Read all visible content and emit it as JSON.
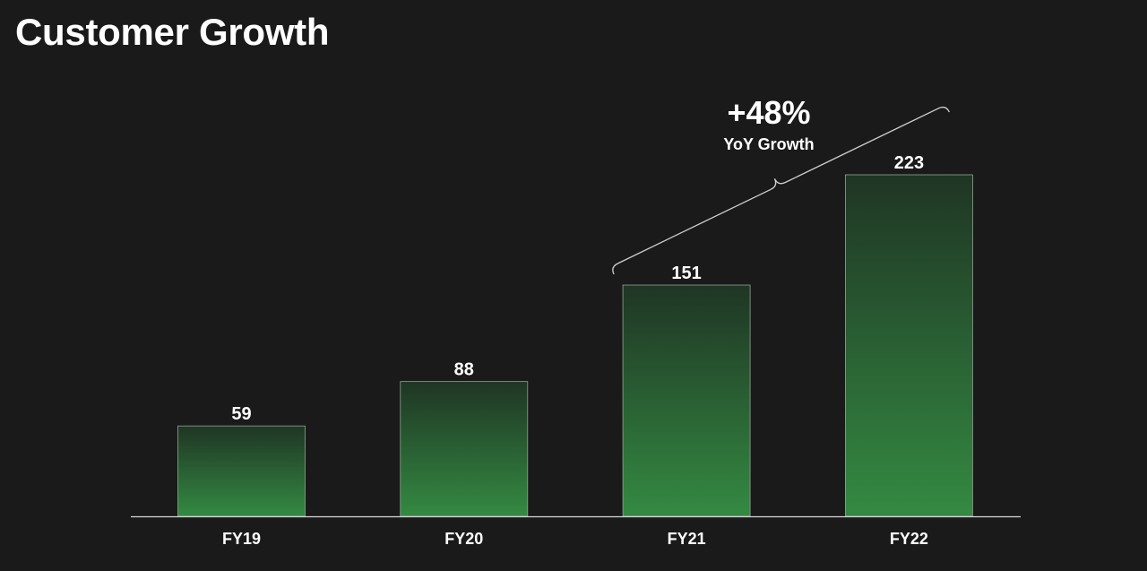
{
  "title": "Customer Growth",
  "chart_data": {
    "type": "bar",
    "categories": [
      "FY19",
      "FY20",
      "FY21",
      "FY22"
    ],
    "values": [
      59,
      88,
      151,
      223
    ],
    "ylim": [
      0,
      223
    ],
    "grid": false,
    "xlabel": "",
    "ylabel": "",
    "annotation": {
      "value": "+48%",
      "caption": "YoY Growth",
      "from": "FY21",
      "to": "FY22"
    },
    "colors": {
      "background": "#1a1a1a",
      "bar_top": "#1f3524",
      "bar_bottom": "#348a42",
      "bar_border": "#8fa592",
      "axis": "#d9d9d9",
      "bracket": "#cfcfcf"
    }
  }
}
